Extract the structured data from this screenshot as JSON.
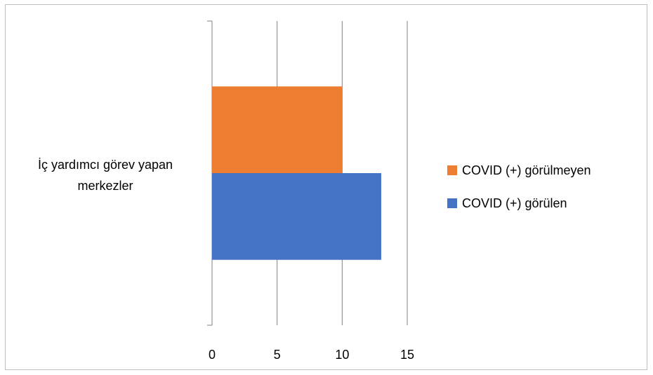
{
  "chart_data": {
    "type": "bar",
    "orientation": "horizontal",
    "categories": [
      "İç yardımcı görev yapan merkezler"
    ],
    "category_label_lines": [
      "İç yardımcı görev yapan",
      "merkezler"
    ],
    "series": [
      {
        "name": "COVID (+)  görülen",
        "values": [
          13
        ],
        "color": "#4472C4"
      },
      {
        "name": "COVID (+) görülmeyen",
        "values": [
          10
        ],
        "color": "#ED7D31"
      }
    ],
    "xlim": [
      0,
      15
    ],
    "xticks": [
      0,
      5,
      10,
      15
    ],
    "xtick_labels": [
      "0",
      "5",
      "10",
      "15"
    ],
    "grid": "vertical",
    "legend_position": "right",
    "title": "",
    "xlabel": "",
    "ylabel": ""
  }
}
